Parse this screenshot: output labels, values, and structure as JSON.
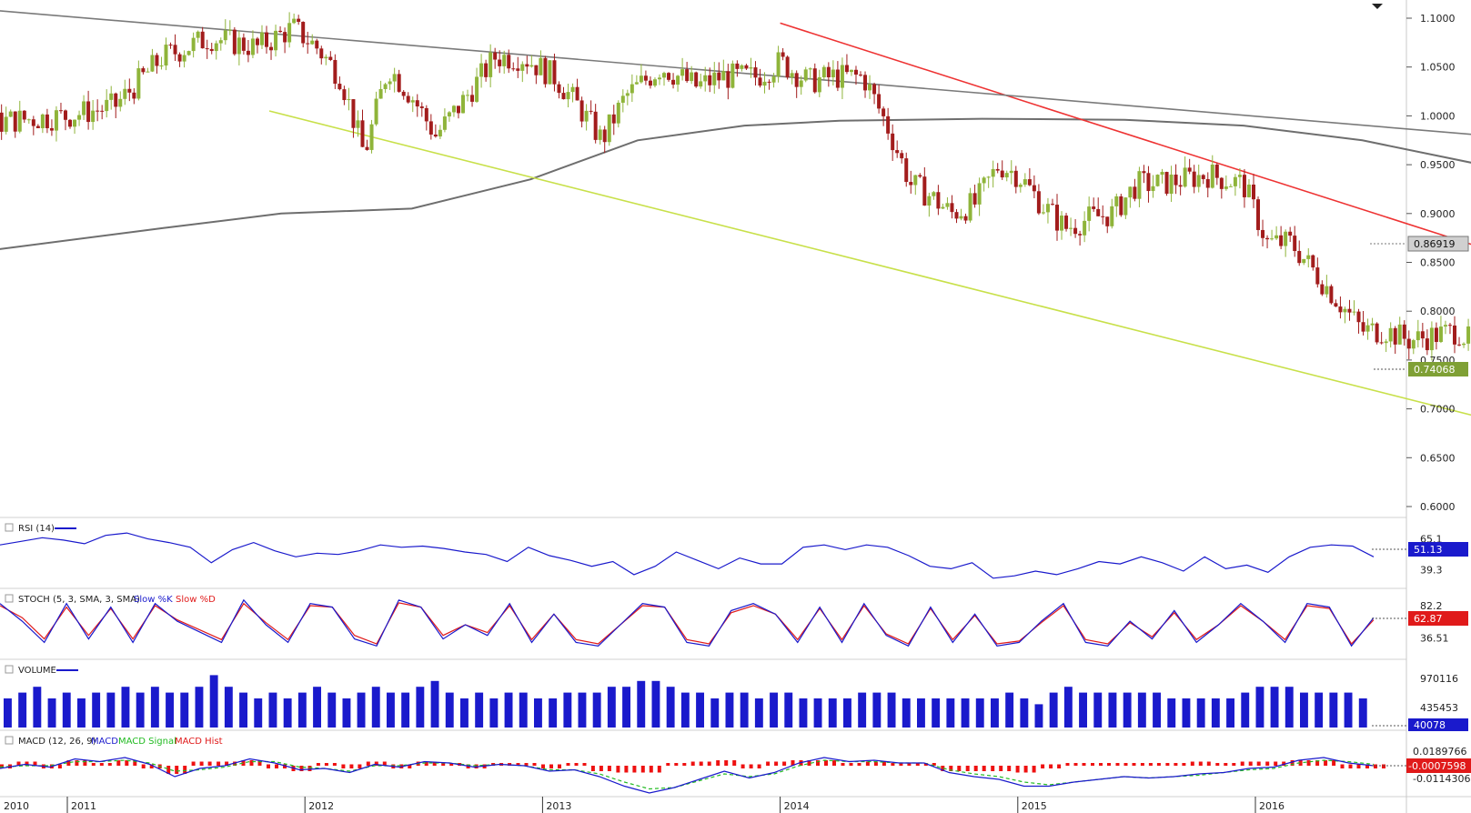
{
  "colors": {
    "up_candle": "#8fb43a",
    "down_candle": "#a21c1c",
    "resistance_line": "#ee3333",
    "support_line": "#c8e04a",
    "long_trend_line": "#7a7a7a",
    "moving_average": "#6e6e6e",
    "rsi": "#1a1acc",
    "stoch_k": "#1a1acc",
    "stoch_d": "#e01a1a",
    "volume": "#1a1acc",
    "macd": "#1a1acc",
    "macd_signal": "#22bb22",
    "macd_hist": "#ee1111"
  },
  "icons": {
    "menu": "triangle-down-icon",
    "panel": "panel-box-icon"
  },
  "chart_data": [
    {
      "type": "candlestick",
      "panel": "price",
      "ylim": [
        0.58,
        1.11
      ],
      "yticks": [
        "1.1000",
        "1.0500",
        "1.0000",
        "0.9500",
        "0.9000",
        "0.8500",
        "0.8000",
        "0.7500",
        "0.7000",
        "0.6500",
        "0.6000"
      ],
      "xlabels": [
        "2010",
        "2011",
        "2012",
        "2013",
        "2014",
        "2015",
        "2016"
      ],
      "last_close": "0.74068",
      "ma_value": "0.86919",
      "close_path": [
        [
          2010.05,
          0.95
        ],
        [
          2010.25,
          0.985
        ],
        [
          2010.5,
          0.98
        ],
        [
          2010.75,
          0.995
        ],
        [
          2011.0,
          1.0
        ],
        [
          2011.2,
          1.01
        ],
        [
          2011.4,
          1.06
        ],
        [
          2011.6,
          1.08
        ],
        [
          2011.8,
          1.07
        ],
        [
          2011.95,
          1.09
        ],
        [
          2012.05,
          1.07
        ],
        [
          2012.15,
          1.04
        ],
        [
          2012.25,
          0.96
        ],
        [
          2012.35,
          1.05
        ],
        [
          2012.45,
          1.02
        ],
        [
          2012.55,
          0.98
        ],
        [
          2012.65,
          1.01
        ],
        [
          2012.8,
          1.06
        ],
        [
          2012.92,
          1.06
        ],
        [
          2013.05,
          1.04
        ],
        [
          2013.15,
          1.01
        ],
        [
          2013.25,
          0.975
        ],
        [
          2013.35,
          1.02
        ],
        [
          2013.5,
          1.05
        ],
        [
          2013.65,
          1.03
        ],
        [
          2013.75,
          1.04
        ],
        [
          2013.9,
          1.04
        ],
        [
          2014.0,
          1.055
        ],
        [
          2014.12,
          1.035
        ],
        [
          2014.22,
          1.04
        ],
        [
          2014.35,
          1.04
        ],
        [
          2014.45,
          0.99
        ],
        [
          2014.55,
          0.93
        ],
        [
          2014.62,
          0.92
        ],
        [
          2014.72,
          0.9
        ],
        [
          2014.82,
          0.91
        ],
        [
          2014.92,
          0.95
        ],
        [
          2015.0,
          0.94
        ],
        [
          2015.1,
          0.91
        ],
        [
          2015.2,
          0.885
        ],
        [
          2015.3,
          0.895
        ],
        [
          2015.4,
          0.9
        ],
        [
          2015.5,
          0.93
        ],
        [
          2015.6,
          0.93
        ],
        [
          2015.7,
          0.935
        ],
        [
          2015.8,
          0.94
        ],
        [
          2015.95,
          0.93
        ],
        [
          2016.05,
          0.87
        ],
        [
          2016.15,
          0.87
        ],
        [
          2016.25,
          0.84
        ],
        [
          2016.35,
          0.81
        ],
        [
          2016.45,
          0.78
        ],
        [
          2016.55,
          0.78
        ],
        [
          2016.65,
          0.77
        ],
        [
          2016.75,
          0.775
        ],
        [
          2016.85,
          0.78
        ],
        [
          2016.95,
          0.76
        ],
        [
          2017.05,
          0.73
        ],
        [
          2017.15,
          0.71
        ],
        [
          2017.25,
          0.72
        ],
        [
          2017.35,
          0.71
        ],
        [
          2017.45,
          0.725
        ],
        [
          2017.55,
          0.735
        ],
        [
          2017.6,
          0.72
        ],
        [
          2017.68,
          0.7
        ],
        [
          2017.8,
          0.72
        ],
        [
          2017.9,
          0.76
        ],
        [
          2018.0,
          0.77
        ],
        [
          2018.08,
          0.755
        ],
        [
          2018.15,
          0.73
        ],
        [
          2018.25,
          0.74
        ]
      ],
      "annotations": [
        {
          "name": "resistance",
          "from": [
            2014.0,
            1.095
          ],
          "to": [
            2018.43,
            0.75
          ]
        },
        {
          "name": "support",
          "from": [
            2011.85,
            1.005
          ],
          "to": [
            2018.43,
            0.6
          ]
        },
        {
          "name": "long-trend",
          "from": [
            2010.35,
            1.115
          ],
          "to": [
            2018.43,
            0.95
          ]
        }
      ],
      "ma_path": [
        [
          2010.0,
          0.835
        ],
        [
          2010.6,
          0.86
        ],
        [
          2011.4,
          0.885
        ],
        [
          2011.9,
          0.9
        ],
        [
          2012.45,
          0.905
        ],
        [
          2012.95,
          0.935
        ],
        [
          2013.4,
          0.975
        ],
        [
          2013.85,
          0.99
        ],
        [
          2014.25,
          0.995
        ],
        [
          2014.85,
          0.997
        ],
        [
          2015.45,
          0.996
        ],
        [
          2015.95,
          0.99
        ],
        [
          2016.45,
          0.975
        ],
        [
          2016.95,
          0.95
        ],
        [
          2017.45,
          0.918
        ],
        [
          2017.85,
          0.89
        ],
        [
          2018.25,
          0.87
        ]
      ]
    },
    {
      "type": "line",
      "panel": "rsi",
      "legend": "RSI (14)",
      "ylim": [
        25,
        80
      ],
      "yticks": [
        "65.1",
        "39.3"
      ],
      "last": "51.13",
      "values": [
        60,
        63,
        66,
        64,
        61,
        68,
        70,
        65,
        62,
        58,
        45,
        56,
        62,
        55,
        50,
        53,
        52,
        55,
        60,
        58,
        59,
        57,
        54,
        52,
        46,
        58,
        51,
        47,
        42,
        46,
        35,
        42,
        54,
        47,
        40,
        49,
        44,
        44,
        58,
        60,
        56,
        60,
        58,
        51,
        42,
        40,
        45,
        32,
        34,
        38,
        35,
        40,
        46,
        44,
        50,
        45,
        38,
        50,
        40,
        43,
        37,
        50,
        58,
        60,
        59,
        50
      ]
    },
    {
      "type": "line",
      "panel": "stoch",
      "legend": "STOCH (5, 3, SMA, 3, SMA)",
      "series_labels": [
        "Slow %K",
        "Slow %D"
      ],
      "ylim": [
        10,
        100
      ],
      "yticks": [
        "82.2",
        "36.51"
      ],
      "last": "62.87",
      "k": [
        85,
        60,
        30,
        85,
        35,
        80,
        30,
        85,
        60,
        45,
        30,
        90,
        55,
        30,
        85,
        80,
        35,
        25,
        90,
        80,
        35,
        55,
        40,
        85,
        30,
        70,
        30,
        25,
        55,
        85,
        80,
        30,
        25,
        75,
        85,
        70,
        30,
        80,
        30,
        85,
        40,
        25,
        80,
        30,
        70,
        25,
        30,
        60,
        85,
        30,
        25,
        60,
        35,
        75,
        30,
        55,
        85,
        60,
        30,
        85,
        80,
        25,
        65
      ],
      "d": [
        82,
        65,
        35,
        80,
        40,
        78,
        35,
        82,
        62,
        48,
        34,
        85,
        58,
        34,
        82,
        80,
        40,
        28,
        86,
        80,
        40,
        55,
        44,
        82,
        34,
        70,
        34,
        28,
        55,
        82,
        80,
        34,
        28,
        72,
        82,
        70,
        34,
        78,
        34,
        82,
        42,
        28,
        78,
        34,
        68,
        28,
        32,
        58,
        82,
        34,
        28,
        58,
        38,
        72,
        34,
        55,
        82,
        60,
        34,
        82,
        78,
        28,
        62
      ]
    },
    {
      "type": "bar",
      "panel": "volume",
      "legend": "VOLUME",
      "yticks": [
        "970116",
        "435453"
      ],
      "last": "40078",
      "values": [
        5,
        6,
        7,
        5,
        6,
        5,
        6,
        6,
        7,
        6,
        7,
        6,
        6,
        7,
        9,
        7,
        6,
        5,
        6,
        5,
        6,
        7,
        6,
        5,
        6,
        7,
        6,
        6,
        7,
        8,
        6,
        5,
        6,
        5,
        6,
        6,
        5,
        5,
        6,
        6,
        6,
        7,
        7,
        8,
        8,
        7,
        6,
        6,
        5,
        6,
        6,
        5,
        6,
        6,
        5,
        5,
        5,
        5,
        6,
        6,
        6,
        5,
        5,
        5,
        5,
        5,
        5,
        5,
        6,
        5,
        4,
        6,
        7,
        6,
        6,
        6,
        6,
        6,
        6,
        5,
        5,
        5,
        5,
        5,
        6,
        7,
        7,
        7,
        6,
        6,
        6,
        6,
        5
      ]
    },
    {
      "type": "line",
      "panel": "macd",
      "legend": "MACD (12, 26, 9)",
      "series_labels": [
        "MACD",
        "MACD Signal",
        "MACD Hist"
      ],
      "yticks": [
        "0.0189766",
        "-0.0114306"
      ],
      "last": "-0.0007598",
      "macd": [
        -2,
        1,
        -1,
        5,
        3,
        6,
        1,
        -8,
        -2,
        0,
        5,
        2,
        -3,
        -2,
        -5,
        1,
        -1,
        3,
        2,
        -1,
        1,
        0,
        -4,
        -3,
        -8,
        -15,
        -20,
        -16,
        -10,
        -4,
        -9,
        -5,
        2,
        6,
        3,
        4,
        2,
        2,
        -5,
        -8,
        -10,
        -15,
        -15,
        -12,
        -10,
        -8,
        -9,
        -8,
        -6,
        -5,
        -2,
        -1,
        4,
        6,
        2,
        0
      ],
      "signal": [
        -1,
        0,
        0,
        3,
        3,
        4,
        2,
        -4,
        -3,
        -1,
        3,
        3,
        -1,
        -2,
        -4,
        0,
        0,
        2,
        2,
        0,
        1,
        0,
        -3,
        -3,
        -6,
        -12,
        -17,
        -16,
        -11,
        -6,
        -8,
        -6,
        0,
        4,
        3,
        3,
        2,
        2,
        -3,
        -6,
        -8,
        -12,
        -14,
        -12,
        -10,
        -8,
        -9,
        -8,
        -7,
        -5,
        -3,
        -2,
        2,
        4,
        3,
        1
      ]
    }
  ]
}
